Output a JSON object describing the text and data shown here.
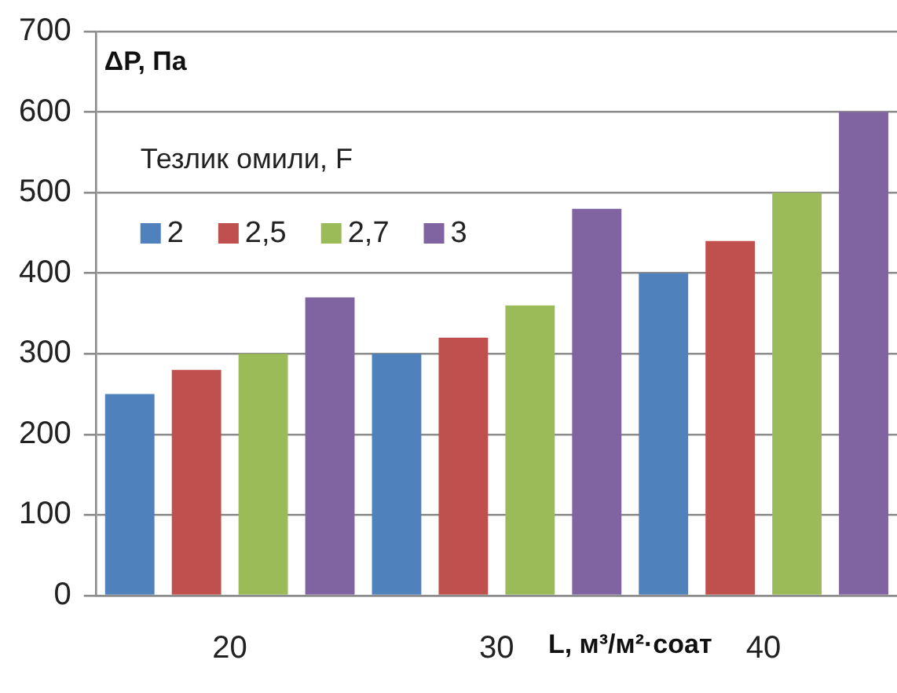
{
  "chart_data": {
    "type": "bar",
    "ylabel": "ΔP, Па",
    "xlabel": "L, м³/м²·соат",
    "legend_title": "Тезлик омили, F",
    "categories": [
      "20",
      "30",
      "40"
    ],
    "series": [
      {
        "name": "2",
        "color": "#4f81bd",
        "values": [
          250,
          300,
          400
        ]
      },
      {
        "name": "2,5",
        "color": "#c0504d",
        "values": [
          280,
          320,
          440
        ]
      },
      {
        "name": "2,7",
        "color": "#9bbb59",
        "values": [
          300,
          360,
          500
        ]
      },
      {
        "name": "3",
        "color": "#8064a2",
        "values": [
          370,
          480,
          600
        ]
      }
    ],
    "ylim": [
      0,
      700
    ],
    "yticks": [
      0,
      100,
      200,
      300,
      400,
      500,
      600,
      700
    ],
    "grid": "y",
    "legend": "top left"
  }
}
